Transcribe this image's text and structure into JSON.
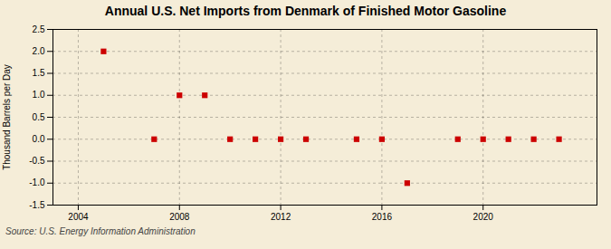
{
  "chart_data": {
    "type": "scatter",
    "title": "Annual U.S. Net Imports from Denmark of Finished Motor Gasoline",
    "ylabel": "Thousand Barrels per Day",
    "source": "Source: U.S. Energy Information Administration",
    "x": [
      2005,
      2007,
      2008,
      2009,
      2010,
      2011,
      2012,
      2013,
      2015,
      2016,
      2017,
      2019,
      2020,
      2021,
      2022,
      2023
    ],
    "values": [
      2.0,
      0.0,
      1.0,
      1.0,
      0.0,
      0.0,
      0.0,
      0.0,
      0.0,
      0.0,
      -1.0,
      0.0,
      0.0,
      0.0,
      0.0,
      0.0
    ],
    "color": "#cc0000",
    "marker": "square",
    "xlim": [
      2003.0,
      2024.5
    ],
    "xticks": [
      2004,
      2008,
      2012,
      2016,
      2020
    ],
    "ylim": [
      -1.5,
      2.5
    ],
    "yticks": [
      -1.5,
      {
        "value": -1.0,
        "label": "-1.0"
      },
      -0.5,
      {
        "value": 0.0,
        "label": "0.0"
      },
      0.5,
      {
        "value": 1.0,
        "label": "1.0"
      },
      1.5,
      {
        "value": 2.0,
        "label": "2.0"
      },
      2.5
    ],
    "grid": true
  }
}
